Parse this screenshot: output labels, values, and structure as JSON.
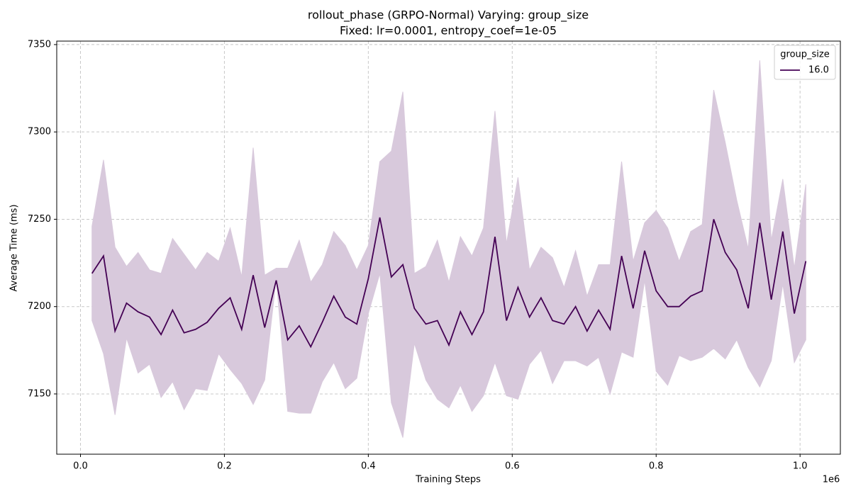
{
  "chart_data": {
    "type": "line",
    "title": "rollout_phase (GRPO-Normal) Varying: group_size",
    "subtitle": "Fixed: lr=0.0001, entropy_coef=1e-05",
    "x_label": "Training Steps",
    "y_label": "Average Time (ms)",
    "x_scale_label": "1e6",
    "legend_title": "group_size",
    "legend_position": "upper right",
    "grid": true,
    "xlim": [
      -0.033,
      1.056
    ],
    "ylim": [
      7115.5,
      7352
    ],
    "xticks": [
      {
        "value": 0,
        "label": "0.0"
      },
      0.2,
      0.4,
      0.6,
      0.8,
      {
        "value": 1,
        "label": "1.0"
      }
    ],
    "yticks": [
      7150,
      7200,
      7250,
      7300,
      7350
    ],
    "x": [
      0.016,
      0.032,
      0.048,
      0.064,
      0.08,
      0.096,
      0.112,
      0.128,
      0.144,
      0.16,
      0.176,
      0.192,
      0.208,
      0.224,
      0.24,
      0.256,
      0.272,
      0.288,
      0.304,
      0.32,
      0.336,
      0.352,
      0.368,
      0.384,
      0.4,
      0.416,
      0.432,
      0.448,
      0.464,
      0.48,
      0.496,
      0.512,
      0.528,
      0.544,
      0.56,
      0.576,
      0.592,
      0.608,
      0.624,
      0.64,
      0.656,
      0.672,
      0.688,
      0.704,
      0.72,
      0.736,
      0.752,
      0.768,
      0.784,
      0.8,
      0.816,
      0.832,
      0.848,
      0.864,
      0.88,
      0.896,
      0.912,
      0.928,
      0.944,
      0.96,
      0.976,
      0.992,
      1.008
    ],
    "series": [
      {
        "name": "16.0",
        "color": "#440154",
        "band_color": "#d8c9dc",
        "values": [
          7219,
          7229,
          7186,
          7202,
          7197,
          7194,
          7184,
          7198,
          7185,
          7187,
          7191,
          7199,
          7205,
          7187,
          7218,
          7188,
          7215,
          7181,
          7189,
          7177,
          7191,
          7206,
          7194,
          7190,
          7216,
          7251,
          7217,
          7224,
          7199,
          7190,
          7192,
          7178,
          7197,
          7184,
          7197,
          7240,
          7192,
          7211,
          7194,
          7205,
          7192,
          7190,
          7200,
          7186,
          7198,
          7187,
          7229,
          7199,
          7232,
          7209,
          7200,
          7200,
          7206,
          7209,
          7250,
          7231,
          7221,
          7199,
          7248,
          7204,
          7243,
          7196,
          7226
        ],
        "upper": [
          7246,
          7284,
          7234,
          7223,
          7231,
          7221,
          7219,
          7239,
          7230,
          7221,
          7231,
          7226,
          7245,
          7217,
          7291,
          7218,
          7222,
          7222,
          7238,
          7214,
          7224,
          7243,
          7235,
          7221,
          7235,
          7283,
          7289,
          7323,
          7219,
          7223,
          7238,
          7214,
          7240,
          7229,
          7245,
          7312,
          7236,
          7274,
          7221,
          7234,
          7228,
          7211,
          7232,
          7206,
          7224,
          7224,
          7283,
          7226,
          7248,
          7255,
          7245,
          7226,
          7243,
          7247,
          7324,
          7294,
          7261,
          7233,
          7341,
          7238,
          7273,
          7222,
          7270
        ],
        "lower": [
          7192,
          7173,
          7138,
          7182,
          7162,
          7167,
          7148,
          7157,
          7141,
          7153,
          7152,
          7173,
          7164,
          7156,
          7144,
          7158,
          7216,
          7140,
          7139,
          7139,
          7157,
          7168,
          7153,
          7159,
          7196,
          7219,
          7145,
          7125,
          7179,
          7158,
          7147,
          7142,
          7155,
          7140,
          7149,
          7168,
          7149,
          7147,
          7167,
          7175,
          7156,
          7169,
          7169,
          7166,
          7171,
          7150,
          7174,
          7171,
          7215,
          7163,
          7155,
          7172,
          7169,
          7171,
          7176,
          7170,
          7181,
          7165,
          7154,
          7169,
          7213,
          7168,
          7181
        ]
      }
    ]
  }
}
